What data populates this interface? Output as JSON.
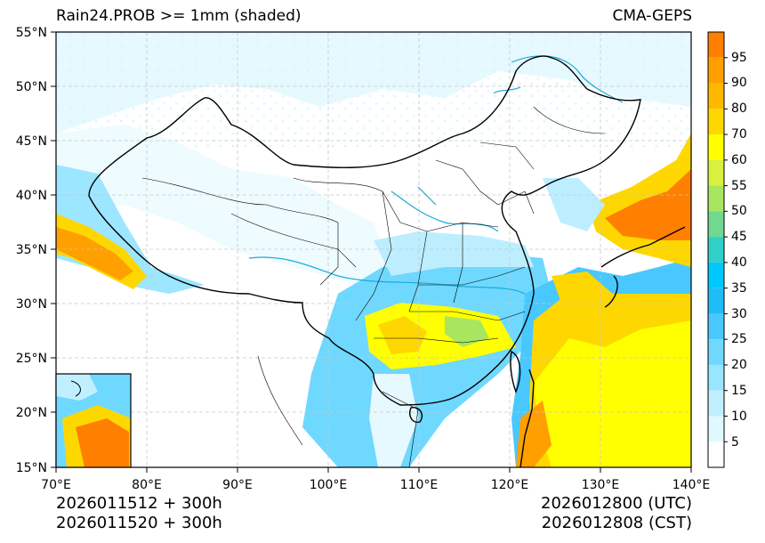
{
  "header": {
    "title_left": "Rain24.PROB >= 1mm (shaded)",
    "title_right": "CMA-GEPS"
  },
  "footer": {
    "init_utc": "2026011512 + 300h",
    "init_cst": "2026011520 + 300h",
    "valid_utc": "2026012800 (UTC)",
    "valid_cst": "2026012808 (CST)"
  },
  "map": {
    "lon_ticks": [
      "70°E",
      "80°E",
      "90°E",
      "100°E",
      "110°E",
      "120°E",
      "130°E",
      "140°E"
    ],
    "lat_ticks": [
      "55°N",
      "50°N",
      "45°N",
      "40°N",
      "35°N",
      "30°N",
      "25°N",
      "20°N",
      "15°N"
    ],
    "lon_range": [
      70,
      140
    ],
    "lat_range": [
      15,
      55
    ]
  },
  "colorbar": {
    "labels": [
      "95",
      "90",
      "80",
      "70",
      "60",
      "55",
      "50",
      "45",
      "40",
      "35",
      "30",
      "25",
      "20",
      "15",
      "10",
      "5"
    ],
    "colors": [
      "#ff8000",
      "#ff9f00",
      "#ffb800",
      "#ffd700",
      "#ffff00",
      "#d8f040",
      "#a8e660",
      "#70d890",
      "#30d0c8",
      "#00c8ff",
      "#20bcf8",
      "#48c8ff",
      "#70d8ff",
      "#98e6ff",
      "#c0f0ff",
      "#e0f8ff",
      "#ffffff"
    ]
  },
  "colors": {
    "border": "#000000",
    "river": "#1aaad8",
    "grid": "#c8c8c8"
  }
}
